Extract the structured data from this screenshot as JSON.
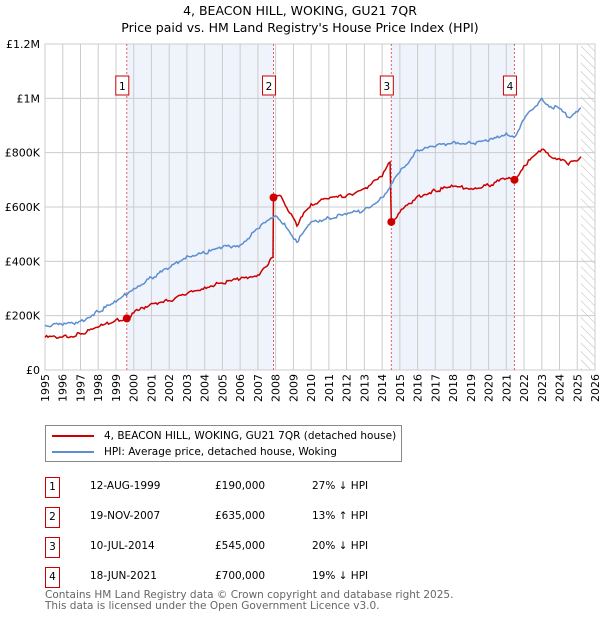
{
  "title": "4, BEACON HILL, WOKING, GU21 7QR",
  "subtitle": "Price paid vs. HM Land Registry's House Price Index (HPI)",
  "colors": {
    "property": "#cc0000",
    "hpi": "#5b8fd0",
    "shade": "#eef3fc"
  },
  "chart_data": {
    "type": "line",
    "xlim": [
      1995,
      2026
    ],
    "ylim": [
      0,
      1200000
    ],
    "yticks": [
      0,
      200000,
      400000,
      600000,
      800000,
      1000000,
      1200000
    ],
    "ytick_labels": [
      "£0",
      "£200K",
      "£400K",
      "£600K",
      "£800K",
      "£1M",
      "£1.2M"
    ],
    "xticks": [
      "1995",
      "1996",
      "1997",
      "1998",
      "1999",
      "2000",
      "2001",
      "2002",
      "2003",
      "2004",
      "2005",
      "2006",
      "2007",
      "2008",
      "2009",
      "2010",
      "2011",
      "2012",
      "2013",
      "2014",
      "2015",
      "2016",
      "2017",
      "2018",
      "2019",
      "2020",
      "2021",
      "2022",
      "2023",
      "2024",
      "2025",
      "2026"
    ],
    "series": [
      {
        "name": "4, BEACON HILL, WOKING, GU21 7QR (detached house)",
        "points": [
          [
            1995,
            120000
          ],
          [
            1996,
            122000
          ],
          [
            1997,
            132000
          ],
          [
            1998,
            158000
          ],
          [
            1999,
            185000
          ],
          [
            1999.61,
            190000
          ],
          [
            2000,
            210000
          ],
          [
            2001,
            245000
          ],
          [
            2002,
            255000
          ],
          [
            2003,
            280000
          ],
          [
            2004,
            305000
          ],
          [
            2005,
            320000
          ],
          [
            2006,
            335000
          ],
          [
            2007,
            350000
          ],
          [
            2007.85,
            415000
          ],
          [
            2007.88,
            635000
          ],
          [
            2008.3,
            640000
          ],
          [
            2009.2,
            530000
          ],
          [
            2009.5,
            565000
          ],
          [
            2010,
            612000
          ],
          [
            2011,
            630000
          ],
          [
            2012,
            642000
          ],
          [
            2013,
            668000
          ],
          [
            2014,
            712000
          ],
          [
            2014.45,
            765000
          ],
          [
            2014.52,
            545000
          ],
          [
            2015,
            580000
          ],
          [
            2016,
            640000
          ],
          [
            2017,
            660000
          ],
          [
            2018,
            675000
          ],
          [
            2019,
            668000
          ],
          [
            2020,
            680000
          ],
          [
            2021,
            705000
          ],
          [
            2021.46,
            700000
          ],
          [
            2022,
            752000
          ],
          [
            2023,
            812000
          ],
          [
            2023.5,
            785000
          ],
          [
            2024,
            778000
          ],
          [
            2024.5,
            755000
          ],
          [
            2025.2,
            785000
          ]
        ]
      },
      {
        "name": "HPI: Average price, detached house, Woking",
        "points": [
          [
            1995,
            165000
          ],
          [
            1996,
            165000
          ],
          [
            1997,
            180000
          ],
          [
            1998,
            215000
          ],
          [
            1999,
            250000
          ],
          [
            2000,
            300000
          ],
          [
            2001,
            340000
          ],
          [
            2002,
            375000
          ],
          [
            2003,
            420000
          ],
          [
            2004,
            430000
          ],
          [
            2005,
            452000
          ],
          [
            2006,
            460000
          ],
          [
            2007,
            520000
          ],
          [
            2007.9,
            565000
          ],
          [
            2008.5,
            540000
          ],
          [
            2009.2,
            470000
          ],
          [
            2010,
            545000
          ],
          [
            2011,
            560000
          ],
          [
            2012,
            572000
          ],
          [
            2013,
            590000
          ],
          [
            2014,
            635000
          ],
          [
            2014.6,
            690000
          ],
          [
            2015,
            728000
          ],
          [
            2016,
            810000
          ],
          [
            2017,
            822000
          ],
          [
            2018,
            840000
          ],
          [
            2019,
            835000
          ],
          [
            2020,
            842000
          ],
          [
            2021,
            872000
          ],
          [
            2021.5,
            860000
          ],
          [
            2022,
            922000
          ],
          [
            2023,
            1000000
          ],
          [
            2023.5,
            970000
          ],
          [
            2024,
            962000
          ],
          [
            2024.5,
            930000
          ],
          [
            2025.2,
            965000
          ]
        ]
      }
    ],
    "sales": [
      {
        "label": "1",
        "x": 1999.61,
        "price": 190000
      },
      {
        "label": "2",
        "x": 2007.88,
        "price": 635000
      },
      {
        "label": "3",
        "x": 2014.52,
        "price": 545000
      },
      {
        "label": "4",
        "x": 2021.46,
        "price": 700000
      }
    ],
    "shaded_ranges": [
      [
        1999.61,
        2007.88
      ],
      [
        2014.52,
        2021.46
      ]
    ],
    "forecast_from": 2025.2
  },
  "legend": {
    "property": "4, BEACON HILL, WOKING, GU21 7QR (detached house)",
    "hpi": "HPI: Average price, detached house, Woking"
  },
  "sales_table": [
    {
      "num": "1",
      "date": "12-AUG-1999",
      "price": "£190,000",
      "hpi": "27% ↓ HPI"
    },
    {
      "num": "2",
      "date": "19-NOV-2007",
      "price": "£635,000",
      "hpi": "13% ↑ HPI"
    },
    {
      "num": "3",
      "date": "10-JUL-2014",
      "price": "£545,000",
      "hpi": "20% ↓ HPI"
    },
    {
      "num": "4",
      "date": "18-JUN-2021",
      "price": "£700,000",
      "hpi": "19% ↓ HPI"
    }
  ],
  "footer": [
    "Contains HM Land Registry data © Crown copyright and database right 2025.",
    "This data is licensed under the Open Government Licence v3.0."
  ]
}
